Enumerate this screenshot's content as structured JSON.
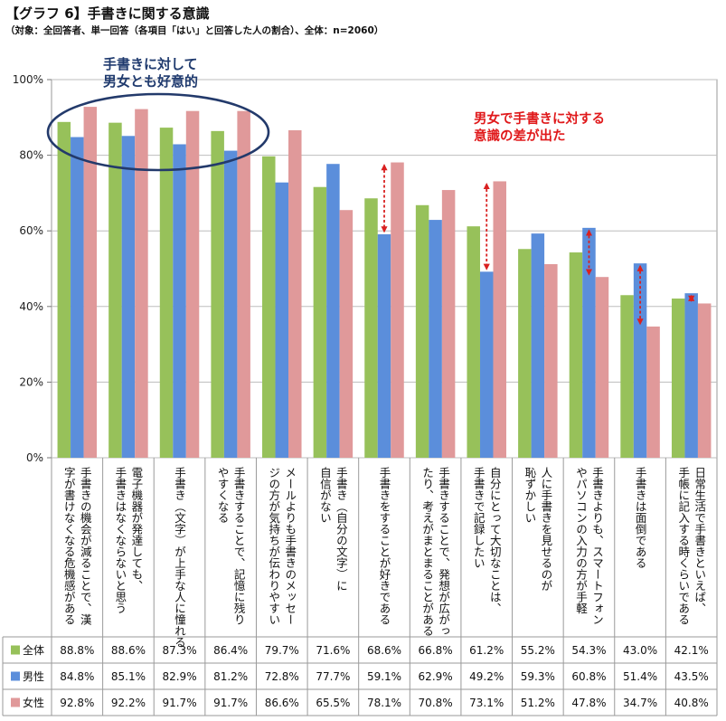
{
  "title": "【グラフ 6】手書きに関する意識",
  "subtitle": "（対象：全回答者、単一回答（各項目「はい」と回答した人の割合）、全体：n=2060）",
  "colors": {
    "overall": "#97c15a",
    "male": "#5b8edb",
    "female": "#e0999a",
    "oval": "#233a6b",
    "arrow": "#d92020",
    "blue_text": "#1f3a6e",
    "red_text": "#e0191b"
  },
  "annotations": {
    "blue_note_line1": "手書きに対して",
    "blue_note_line2": "男女とも好意的",
    "red_note_line1": "男女で手書きに対する",
    "red_note_line2": "意識の差が出た"
  },
  "chart_data": {
    "type": "bar",
    "ylim": [
      0,
      100
    ],
    "yticks": [
      "0%",
      "20%",
      "40%",
      "60%",
      "80%",
      "100%"
    ],
    "categories": [
      [
        "手書きの機会が減ることで、漢",
        "字が書けなくなる危機感がある"
      ],
      [
        "電子機器が発達しても、",
        "手書きはなくならないと思う"
      ],
      [
        "手書き（文字）が上手な人に憧れる"
      ],
      [
        "手書きすることで、記憶に残り",
        "やすくなる"
      ],
      [
        "メールよりも手書きのメッセー",
        "ジの方が気持ちが伝わりやすい"
      ],
      [
        "手書き（自分の文字）に",
        "自信がない"
      ],
      [
        "手書きをすることが好きである"
      ],
      [
        "手書きすることで、発想が広がっ",
        "たり、考えがまとまることがある"
      ],
      [
        "自分にとって大切なことは、",
        "手書きで記録したい"
      ],
      [
        "人に手書きを見せるのが",
        "恥ずかしい"
      ],
      [
        "手書きよりも、スマートフォン",
        "やパソコンの入力の方が手軽"
      ],
      [
        "手書きは面倒である"
      ],
      [
        "日常生活で手書きといえば、",
        "手帳に記入する時くらいである"
      ]
    ],
    "series": [
      {
        "name": "全体",
        "values": [
          88.8,
          88.6,
          87.3,
          86.4,
          79.7,
          71.6,
          68.6,
          66.8,
          61.2,
          55.2,
          54.3,
          43.0,
          42.1
        ],
        "labels": [
          "88.8%",
          "88.6%",
          "87.3%",
          "86.4%",
          "79.7%",
          "71.6%",
          "68.6%",
          "66.8%",
          "61.2%",
          "55.2%",
          "54.3%",
          "43.0%",
          "42.1%"
        ]
      },
      {
        "name": "男性",
        "values": [
          84.8,
          85.1,
          82.9,
          81.2,
          72.8,
          77.7,
          59.1,
          62.9,
          49.2,
          59.3,
          60.8,
          51.4,
          43.5
        ],
        "labels": [
          "84.8%",
          "85.1%",
          "82.9%",
          "81.2%",
          "72.8%",
          "77.7%",
          "59.1%",
          "62.9%",
          "49.2%",
          "59.3%",
          "60.8%",
          "51.4%",
          "43.5%"
        ]
      },
      {
        "name": "女性",
        "values": [
          92.8,
          92.2,
          91.7,
          91.7,
          86.6,
          65.5,
          78.1,
          70.8,
          73.1,
          51.2,
          47.8,
          34.7,
          40.8
        ],
        "labels": [
          "92.8%",
          "92.2%",
          "91.7%",
          "91.7%",
          "86.6%",
          "65.5%",
          "78.1%",
          "70.8%",
          "73.1%",
          "51.2%",
          "47.8%",
          "34.7%",
          "40.8%"
        ]
      }
    ],
    "highlight_gap_categories": [
      6,
      8,
      10,
      11,
      12
    ]
  }
}
